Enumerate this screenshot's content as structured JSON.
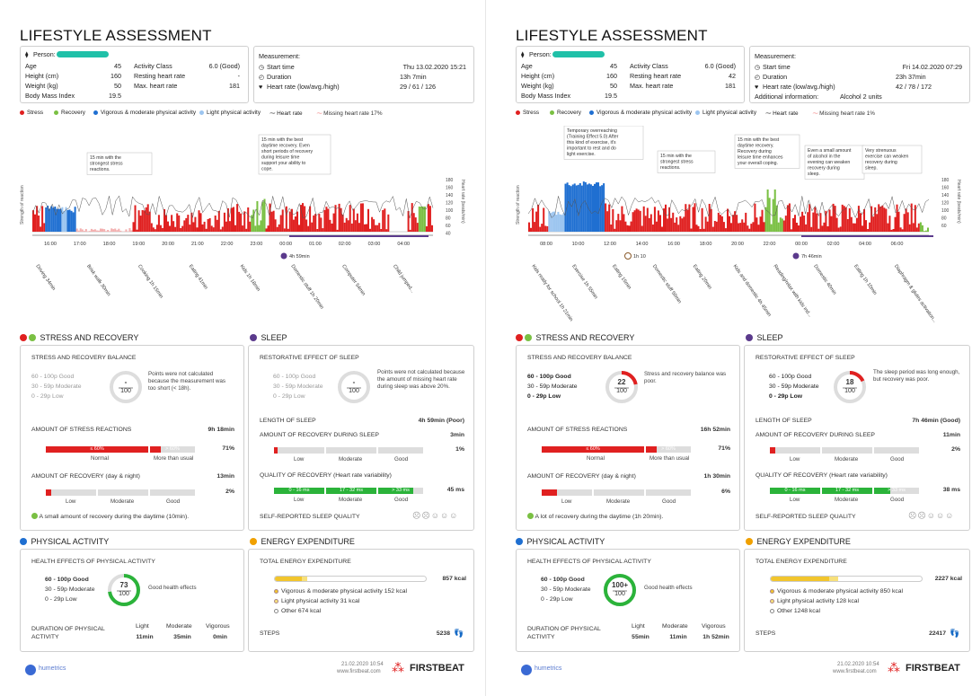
{
  "colors": {
    "stress": "#e02020",
    "recovery": "#7ac043",
    "vigorous": "#1f6fd1",
    "light": "#9cc5f0",
    "hr": "#555555",
    "missing": "#f07070",
    "green": "#2bb33a",
    "gray": "#dddddd",
    "yellow": "#f2c52d"
  },
  "pages": [
    {
      "title": "LIFESTYLE ASSESSMENT",
      "person": {
        "label": "Person:",
        "age_l": "Age",
        "age": "45",
        "height_l": "Height (cm)",
        "height": "160",
        "weight_l": "Weight (kg)",
        "weight": "50",
        "bmi_l": "Body Mass Index",
        "bmi": "19.5",
        "ac_l": "Activity Class",
        "ac": "6.0 (Good)",
        "rhr_l": "Resting heart rate",
        "rhr": "-",
        "mhr_l": "Max. heart rate",
        "mhr": "181"
      },
      "meas": {
        "label": "Measurement:",
        "start_l": "Start time",
        "start": "Thu 13.02.2020 15:21",
        "dur_l": "Duration",
        "dur": "13h 7min",
        "hr_l": "Heart rate (low/avg./high)",
        "hr": "29 / 61 / 126",
        "add_l": "",
        "add": ""
      },
      "legend": [
        "Stress",
        "Recovery",
        "Vigorous & moderate physical activity",
        "Light physical activity",
        "Heart rate",
        "Missing heart rate 17%"
      ],
      "chart": {
        "hours": [
          "16:00",
          "17:00",
          "18:00",
          "19:00",
          "20:00",
          "21:00",
          "22:00",
          "23:00",
          "00:00",
          "01:00",
          "02:00",
          "03:00",
          "04:00"
        ],
        "sleep": "4h 59min",
        "sleep2": "",
        "activities": [
          "Driving 34min",
          "Brisk walk 30min",
          "Cooking 1h 15min",
          "Eating 41min",
          "Kids 1h 18min",
          "Domestic stuff 1h 20min",
          "Computer 54min",
          "Child jumped..."
        ],
        "notes": [
          "15 min with the strongest stress reactions.",
          "15 min with the best daytime recovery. Even short periods of recovery during leisure time support your ability to cope.",
          "",
          ""
        ],
        "yleft": "Strength of reaction",
        "yright": "Heart rate (beats/min)",
        "yticks": [
          "180",
          "160",
          "140",
          "120",
          "100",
          "80",
          "60",
          "40"
        ]
      },
      "stress": {
        "title": "STRESS AND RECOVERY",
        "balance": "STRESS AND RECOVERY BALANCE",
        "good": "60 - 100p Good",
        "mod": "30 - 59p Moderate",
        "low": "0 - 29p Low",
        "score": "-",
        "den": "100",
        "note": "Points were not calculated because the measurement was too short (< 18h).",
        "sr_l": "AMOUNT OF STRESS REACTIONS",
        "sr": "9h 18min",
        "sr_pct": "71%",
        "sr_bar": "≤ 60%",
        "sr_bar2": "> 60%",
        "normal": "Normal",
        "more": "More than usual",
        "rec_l": "AMOUNT OF RECOVERY (day & night)",
        "rec": "13min",
        "rec_pct": "2%",
        "lowl": "Low",
        "modl": "Moderate",
        "goodl": "Good",
        "rec_note": "A small amount of recovery during the daytime (10min)."
      },
      "sleep": {
        "title": "SLEEP",
        "rest": "RESTORATIVE EFFECT OF SLEEP",
        "good": "60 - 100p Good",
        "mod": "30 - 59p Moderate",
        "low": "0 - 29p Low",
        "score": "-",
        "den": "100",
        "note": "Points were not calculated because the amount of missing heart rate during sleep was above 20%.",
        "len_l": "LENGTH OF SLEEP",
        "len": "4h 59min (Poor)",
        "rec_l": "AMOUNT OF RECOVERY DURING SLEEP",
        "rec": "3min",
        "rec_pct": "1%",
        "q_l": "QUALITY OF RECOVERY (Heart rate variability)",
        "q": "45 ms",
        "q1": "0 - 16 ms",
        "q2": "17 - 32 ms",
        "q3": "> 33 ms",
        "lowl": "Low",
        "modl": "Moderate",
        "goodl": "Good",
        "self": "SELF-REPORTED SLEEP QUALITY"
      },
      "pa": {
        "title": "PHYSICAL ACTIVITY",
        "health": "HEALTH EFFECTS OF PHYSICAL ACTIVITY",
        "good": "60 - 100p Good",
        "mod": "30 - 59p Moderate",
        "low": "0 - 29p Low",
        "score": "73",
        "den": "100",
        "note": "Good health effects",
        "dur_l": "DURATION OF PHYSICAL ACTIVITY",
        "light_l": "Light",
        "mod_l": "Moderate",
        "vig_l": "Vigorous",
        "light": "11min",
        "moder": "35min",
        "vig": "0min"
      },
      "ee": {
        "title": "ENERGY EXPENDITURE",
        "total_l": "TOTAL ENERGY EXPENDITURE",
        "total": "857 kcal",
        "vig": "Vigorous & moderate physical activity 152 kcal",
        "light": "Light physical activity 31 kcal",
        "other": "Other 674 kcal",
        "steps_l": "STEPS",
        "steps": "5238"
      },
      "footer": {
        "date": "21.02.2020 10:54",
        "url": "www.firstbeat.com",
        "brand": "FIRSTBEAT",
        "hum": "humetrics"
      }
    },
    {
      "title": "LIFESTYLE ASSESSMENT",
      "person": {
        "label": "Person:",
        "age_l": "Age",
        "age": "45",
        "height_l": "Height (cm)",
        "height": "160",
        "weight_l": "Weight (kg)",
        "weight": "50",
        "bmi_l": "Body Mass Index",
        "bmi": "19.5",
        "ac_l": "Activity Class",
        "ac": "6.0 (Good)",
        "rhr_l": "Resting heart rate",
        "rhr": "42",
        "mhr_l": "Max. heart rate",
        "mhr": "181"
      },
      "meas": {
        "label": "Measurement:",
        "start_l": "Start time",
        "start": "Fri 14.02.2020 07:29",
        "dur_l": "Duration",
        "dur": "23h 37min",
        "hr_l": "Heart rate (low/avg./high)",
        "hr": "42 / 78 / 172",
        "add_l": "Additional information:",
        "add": "Alcohol 2 units"
      },
      "legend": [
        "Stress",
        "Recovery",
        "Vigorous & moderate physical activity",
        "Light physical activity",
        "Heart rate",
        "Missing heart rate 1%"
      ],
      "chart": {
        "hours": [
          "08:00",
          "10:00",
          "12:00",
          "14:00",
          "16:00",
          "18:00",
          "20:00",
          "22:00",
          "00:00",
          "02:00",
          "04:00",
          "06:00"
        ],
        "sleep": "7h 46min",
        "sleep2": "1h 10",
        "activities": [
          "Kids ready for school 1h 21min",
          "Exercise 1h 55min",
          "Eating 15min",
          "Domestic stuff 50min",
          "Eating 20min",
          "Kids and domestic 4h 45min",
          "Reading/relax with kids ind...",
          "Domestic 40min",
          "Eating 1h 10min",
          "Diaphragm & glutes activation..."
        ],
        "notes": [
          "15 min with the strongest stress reactions.",
          "15 min with the best daytime recovery. Recovery during leisure time enhances your overall coping.",
          "Temporary overreaching (Training Effect 5.0) After this kind of exercise, it's important to rest and do light exercise.",
          "Even a small amount of alcohol in the evening can weaken recovery during sleep.",
          "Very strenuous exercise can weaken recovery during sleep.",
          "928 kcal",
          "1h 10min"
        ],
        "yleft": "Strength of reaction",
        "yright": "Heart rate (beats/min)",
        "yticks": [
          "180",
          "160",
          "140",
          "120",
          "100",
          "80",
          "60"
        ]
      },
      "stress": {
        "title": "STRESS AND RECOVERY",
        "balance": "STRESS AND RECOVERY BALANCE",
        "good": "60 - 100p Good",
        "mod": "30 - 59p Moderate",
        "low": "0 - 29p Low",
        "score": "22",
        "den": "100",
        "note": "Stress and recovery balance was poor.",
        "sr_l": "AMOUNT OF STRESS REACTIONS",
        "sr": "16h 52min",
        "sr_pct": "71%",
        "sr_bar": "≤ 60%",
        "sr_bar2": "> 60%",
        "normal": "Normal",
        "more": "More than usual",
        "rec_l": "AMOUNT OF RECOVERY (day & night)",
        "rec": "1h 30min",
        "rec_pct": "6%",
        "lowl": "Low",
        "modl": "Moderate",
        "goodl": "Good",
        "rec_note": "A lot of recovery during the daytime (1h 20min)."
      },
      "sleep": {
        "title": "SLEEP",
        "rest": "RESTORATIVE EFFECT OF SLEEP",
        "good": "60 - 100p Good",
        "mod": "30 - 59p Moderate",
        "low": "0 - 29p Low",
        "score": "18",
        "den": "100",
        "note": "The sleep period was long enough, but recovery was poor.",
        "len_l": "LENGTH OF SLEEP",
        "len": "7h 46min (Good)",
        "rec_l": "AMOUNT OF RECOVERY DURING SLEEP",
        "rec": "11min",
        "rec_pct": "2%",
        "q_l": "QUALITY OF RECOVERY (Heart rate variability)",
        "q": "38 ms",
        "q1": "0 - 16 ms",
        "q2": "17 - 32 ms",
        "q3": "> 33 ms",
        "lowl": "Low",
        "modl": "Moderate",
        "goodl": "Good",
        "self": "SELF-REPORTED SLEEP QUALITY"
      },
      "pa": {
        "title": "PHYSICAL ACTIVITY",
        "health": "HEALTH EFFECTS OF PHYSICAL ACTIVITY",
        "good": "60 - 100p Good",
        "mod": "30 - 59p Moderate",
        "low": "0 - 29p Low",
        "score": "100+",
        "den": "100",
        "note": "Good health effects",
        "dur_l": "DURATION OF PHYSICAL ACTIVITY",
        "light_l": "Light",
        "mod_l": "Moderate",
        "vig_l": "Vigorous",
        "light": "55min",
        "moder": "11min",
        "vig": "1h 52min"
      },
      "ee": {
        "title": "ENERGY EXPENDITURE",
        "total_l": "TOTAL ENERGY EXPENDITURE",
        "total": "2227 kcal",
        "vig": "Vigorous & moderate physical activity 850 kcal",
        "light": "Light physical activity 128 kcal",
        "other": "Other 1248 kcal",
        "steps_l": "STEPS",
        "steps": "22417"
      },
      "footer": {
        "date": "21.02.2020 10:54",
        "url": "www.firstbeat.com",
        "brand": "FIRSTBEAT",
        "hum": "humetrics"
      }
    }
  ]
}
